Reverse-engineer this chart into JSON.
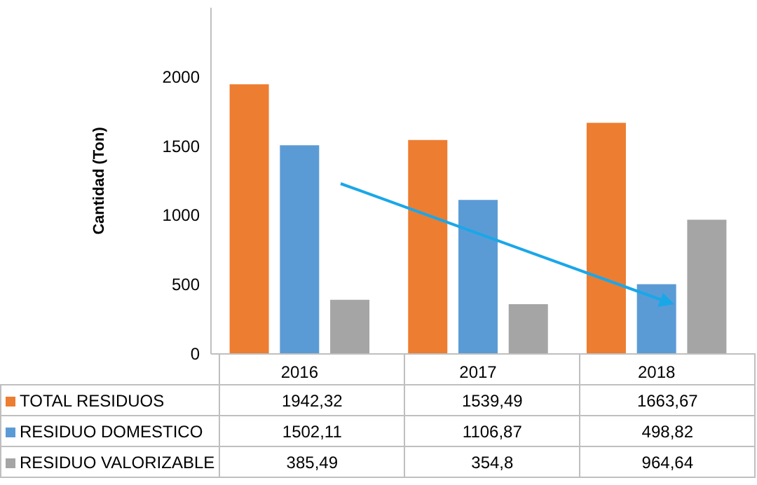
{
  "chart_data": {
    "type": "bar",
    "ylabel": "Cantidad (Ton)",
    "categories": [
      "2016",
      "2017",
      "2018"
    ],
    "series": [
      {
        "name": "TOTAL RESIDUOS",
        "color": "#ed7d31",
        "values": [
          1942.32,
          1539.49,
          1663.67
        ],
        "value_labels": [
          "1942,32",
          "1539,49",
          "1663,67"
        ]
      },
      {
        "name": "RESIDUO DOMESTICO",
        "color": "#5b9bd5",
        "values": [
          1502.11,
          1106.87,
          498.82
        ],
        "value_labels": [
          "1502,11",
          "1106,87",
          "498,82"
        ]
      },
      {
        "name": "RESIDUO VALORIZABLE",
        "color": "#a5a5a5",
        "values": [
          385.49,
          354.8,
          964.64
        ],
        "value_labels": [
          "385,49",
          "354,8",
          "964,64"
        ]
      }
    ],
    "ylim": [
      0,
      2500
    ],
    "yticks": [
      0,
      500,
      1000,
      1500,
      2000
    ],
    "legend": "bottom"
  }
}
